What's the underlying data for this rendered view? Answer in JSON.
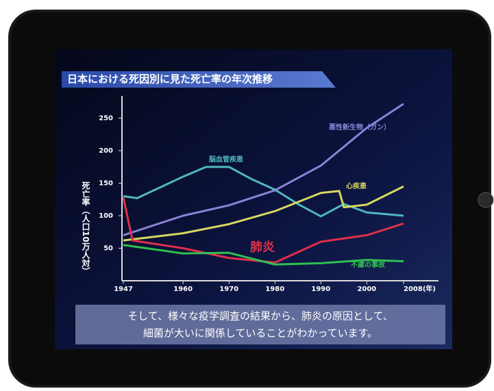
{
  "chart_data": {
    "type": "line",
    "title": "日本における死因別に見た死亡率の年次推移",
    "y_label": "死亡率（人口10万人対）",
    "xlim": [
      1947,
      2008
    ],
    "xticks": [
      1947,
      1960,
      1970,
      1980,
      1990,
      2000,
      {
        "value": 2008,
        "label": "2008(年)"
      }
    ],
    "ylim": [
      0,
      280
    ],
    "yticks": [
      50,
      100,
      150,
      200,
      250
    ],
    "series": [
      {
        "name": "悪性新生物（ガン）",
        "color": "#8a84d8",
        "x": [
          1947,
          1960,
          1970,
          1980,
          1990,
          2000,
          2008
        ],
        "values": [
          70,
          100,
          116,
          139,
          177,
          235,
          272
        ]
      },
      {
        "name": "脳血管疾患",
        "color": "#4fb7c0",
        "x": [
          1947,
          1950,
          1960,
          1965,
          1970,
          1975,
          1980,
          1985,
          1990,
          1995,
          2000,
          2008
        ],
        "values": [
          130,
          127,
          160,
          175,
          175,
          156,
          140,
          118,
          99,
          118,
          105,
          100
        ]
      },
      {
        "name": "心疾患",
        "color": "#d8d860",
        "x": [
          1947,
          1960,
          1970,
          1980,
          1990,
          1994,
          1995,
          2000,
          2008
        ],
        "values": [
          62,
          73,
          87,
          107,
          135,
          138,
          113,
          117,
          145
        ]
      },
      {
        "name": "肺炎",
        "color": "#e0304a",
        "x": [
          1947,
          1949,
          1960,
          1970,
          1980,
          1990,
          2000,
          2008
        ],
        "values": [
          128,
          62,
          50,
          35,
          28,
          60,
          70,
          88
        ]
      },
      {
        "name": "不慮の事故",
        "color": "#30c050",
        "x": [
          1947,
          1960,
          1970,
          1980,
          1990,
          2000,
          2008
        ],
        "values": [
          55,
          42,
          43,
          25,
          27,
          32,
          30
        ]
      }
    ],
    "caption": [
      "そして、様々な疫学調査の結果から、肺炎の原因として、",
      "細菌が大いに関係していることがわかっています。"
    ]
  }
}
